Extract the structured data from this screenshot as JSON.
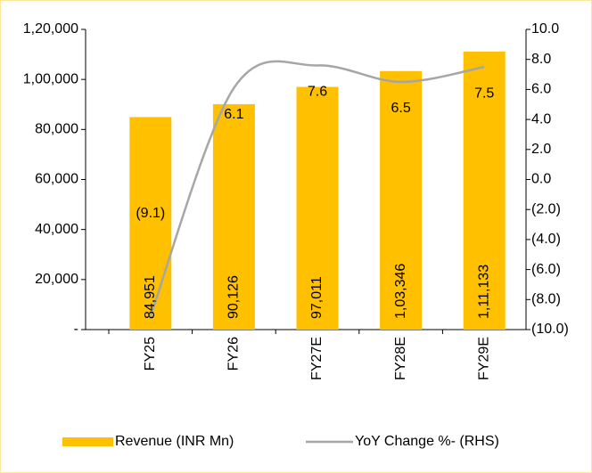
{
  "chart_data": {
    "type": "bar",
    "categories": [
      "FY25",
      "FY26",
      "FY27E",
      "FY28E",
      "FY29E"
    ],
    "series": [
      {
        "name": "Revenue (INR Mn)",
        "type": "bar",
        "color": "#FFC000",
        "values": [
          84951,
          90126,
          97011,
          103346,
          111133
        ],
        "value_labels": [
          "84,951",
          "90,126",
          "97,011",
          "1,03,346",
          "1,11,133"
        ]
      },
      {
        "name": "YoY Change %- (RHS)",
        "type": "line",
        "axis": "y2",
        "color": "#A6A6A6",
        "values": [
          -9.1,
          6.1,
          7.6,
          6.5,
          7.5
        ],
        "value_labels": [
          "(9.1)",
          "6.1",
          "7.6",
          "6.5",
          "7.5"
        ]
      }
    ],
    "ylim": [
      0,
      120000
    ],
    "yticks": [
      {
        "value": 0,
        "label": "-"
      },
      {
        "value": 20000,
        "label": "20,000"
      },
      {
        "value": 40000,
        "label": "40,000"
      },
      {
        "value": 60000,
        "label": "60,000"
      },
      {
        "value": 80000,
        "label": "80,000"
      },
      {
        "value": 100000,
        "label": "1,00,000"
      },
      {
        "value": 120000,
        "label": "1,20,000"
      }
    ],
    "y2lim": [
      -10,
      10
    ],
    "y2ticks": [
      {
        "value": -10,
        "label": "(10.0)"
      },
      {
        "value": -8,
        "label": "(8.0)"
      },
      {
        "value": -6,
        "label": "(6.0)"
      },
      {
        "value": -4,
        "label": "(4.0)"
      },
      {
        "value": -2,
        "label": "(2.0)"
      },
      {
        "value": 0,
        "label": "0.0"
      },
      {
        "value": 2,
        "label": "2.0"
      },
      {
        "value": 4,
        "label": "4.0"
      },
      {
        "value": 6,
        "label": "6.0"
      },
      {
        "value": 8,
        "label": "8.0"
      },
      {
        "value": 10,
        "label": "10.0"
      }
    ],
    "grid": false,
    "legend": "bottom"
  }
}
